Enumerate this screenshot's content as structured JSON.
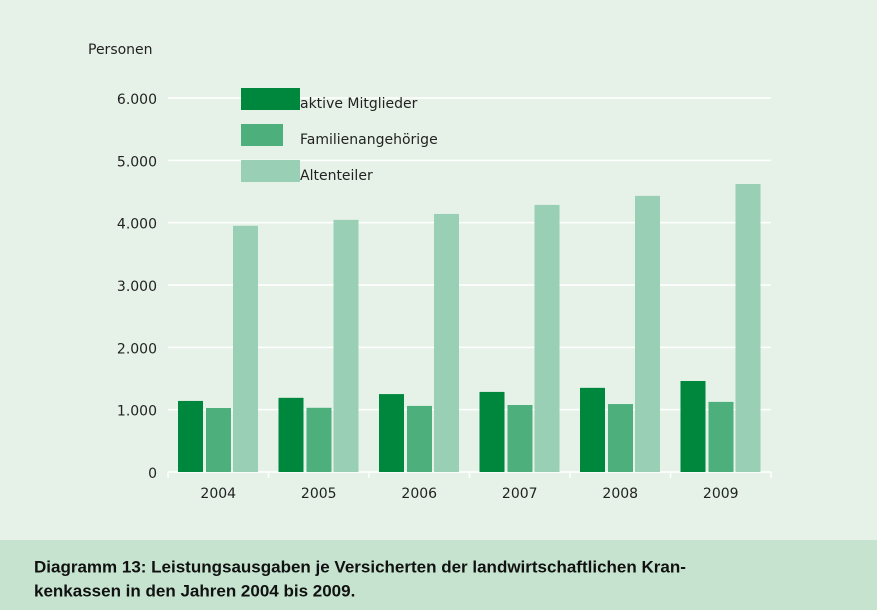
{
  "chart_data": {
    "type": "bar",
    "ylabel": "Personen",
    "categories": [
      "2004",
      "2005",
      "2006",
      "2007",
      "2008",
      "2009"
    ],
    "series": [
      {
        "name": "aktive Mitglieder",
        "color": "#00873e",
        "values": [
          1140,
          1190,
          1250,
          1285,
          1350,
          1460
        ]
      },
      {
        "name": "Familienangehörige",
        "color": "#4daf7c",
        "values": [
          1027,
          1030,
          1060,
          1075,
          1090,
          1125
        ]
      },
      {
        "name": "Altenteiler",
        "color": "#99cfb4",
        "values": [
          3950,
          4045,
          4140,
          4285,
          4430,
          4620
        ]
      }
    ],
    "ylim": [
      0,
      6000
    ],
    "yticks": [
      0,
      {
        "value": 1000,
        "label": "1.000"
      },
      {
        "value": 2000,
        "label": "2.000"
      },
      {
        "value": 3000,
        "label": "3.000"
      },
      {
        "value": 4000,
        "label": "4.000"
      },
      {
        "value": 5000,
        "label": "5.000"
      },
      {
        "value": 6000,
        "label": "6.000"
      }
    ],
    "grid": true,
    "legend": "upper left",
    "caption": [
      "Diagramm 13: Leistungsausgaben je Versicherten der landwirtschaftlichen Kran-",
      "kenkassen in den Jahren 2004 bis 2009."
    ]
  }
}
